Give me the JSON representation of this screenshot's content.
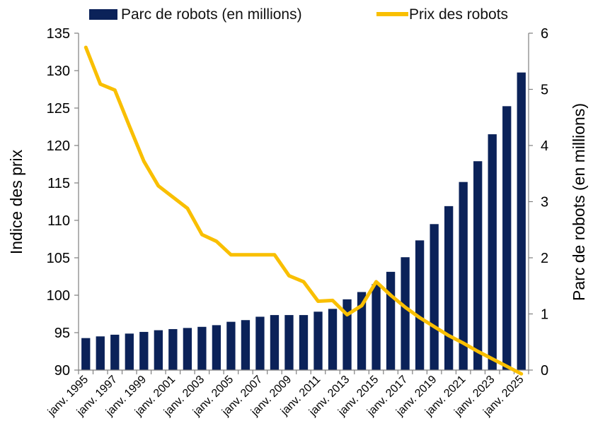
{
  "chart_data": {
    "type": "bar+line",
    "title": "",
    "legend": {
      "position": "top",
      "bar_label": "Parc de robots (en millions)",
      "line_label": "Prix des robots"
    },
    "colors": {
      "bar": "#0b2259",
      "line": "#f9bf00",
      "axis": "#7f7f7f"
    },
    "left_axis": {
      "label": "Indice des prix",
      "min": 90,
      "max": 135,
      "step": 5,
      "ticks": [
        "90",
        "95",
        "100",
        "105",
        "110",
        "115",
        "120",
        "125",
        "130",
        "135"
      ]
    },
    "right_axis": {
      "label": "Parc de robots (en millions)",
      "min": 0,
      "max": 6,
      "step": 1,
      "ticks": [
        "0",
        "1",
        "2",
        "3",
        "4",
        "5",
        "6"
      ]
    },
    "x_tick_labels": [
      "janv. 1995",
      "janv. 1997",
      "janv. 1999",
      "janv. 2001",
      "janv. 2003",
      "janv. 2005",
      "janv. 2007",
      "janv. 2009",
      "janv. 2011",
      "janv. 2013",
      "janv. 2015",
      "janv. 2017",
      "janv. 2019",
      "janv. 2021",
      "janv. 2023",
      "janv. 2025"
    ],
    "years": [
      1995,
      1996,
      1997,
      1998,
      1999,
      2000,
      2001,
      2002,
      2003,
      2004,
      2005,
      2006,
      2007,
      2008,
      2009,
      2010,
      2011,
      2012,
      2013,
      2014,
      2015,
      2016,
      2017,
      2018,
      2019,
      2020,
      2021,
      2022,
      2023,
      2024,
      2025
    ],
    "series": [
      {
        "name": "Parc de robots (en millions)",
        "type": "bar",
        "axis": "right",
        "values": [
          0.57,
          0.6,
          0.63,
          0.65,
          0.68,
          0.71,
          0.73,
          0.75,
          0.77,
          0.8,
          0.86,
          0.89,
          0.95,
          0.98,
          0.98,
          0.98,
          1.04,
          1.09,
          1.26,
          1.39,
          1.53,
          1.75,
          2.01,
          2.31,
          2.6,
          2.92,
          3.35,
          3.72,
          4.2,
          4.7,
          5.3
        ]
      },
      {
        "name": "Prix des robots",
        "type": "line",
        "axis": "left",
        "values": [
          133.1,
          128.2,
          127.4,
          122.6,
          117.9,
          114.6,
          113.1,
          111.6,
          108.1,
          107.2,
          105.4,
          105.4,
          105.4,
          105.4,
          102.6,
          101.8,
          99.2,
          99.3,
          97.4,
          98.6,
          101.8,
          100.0,
          98.4,
          97.0,
          95.8,
          94.6,
          93.6,
          92.5,
          91.5,
          90.5,
          89.5
        ]
      }
    ]
  }
}
